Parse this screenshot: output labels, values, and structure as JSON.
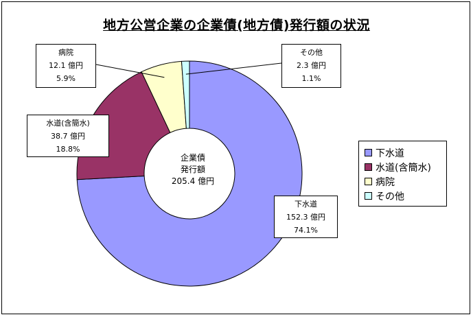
{
  "chart_data": {
    "type": "pie",
    "title": "地方公営企業の企業債(地方債)発行額の状況",
    "center_label": [
      "企業債",
      "発行額",
      "205.4 億円"
    ],
    "slices": [
      {
        "name": "下水道",
        "value": 152.3,
        "value_label": "152.3 億円",
        "percent_label": "74.1%",
        "color": "#9999FF"
      },
      {
        "name": "水道(含簡水)",
        "value": 38.7,
        "value_label": "38.7 億円",
        "percent_label": "18.8%",
        "color": "#993366"
      },
      {
        "name": "病院",
        "value": 12.1,
        "value_label": "12.1 億円",
        "percent_label": "5.9%",
        "color": "#FFFFCC"
      },
      {
        "name": "その他",
        "value": 2.3,
        "value_label": "2.3 億円",
        "percent_label": "1.1%",
        "color": "#CCFFFF"
      }
    ],
    "legend": [
      "下水道",
      "水道(含簡水)",
      "病院",
      "その他"
    ],
    "legend_placement": "right"
  }
}
